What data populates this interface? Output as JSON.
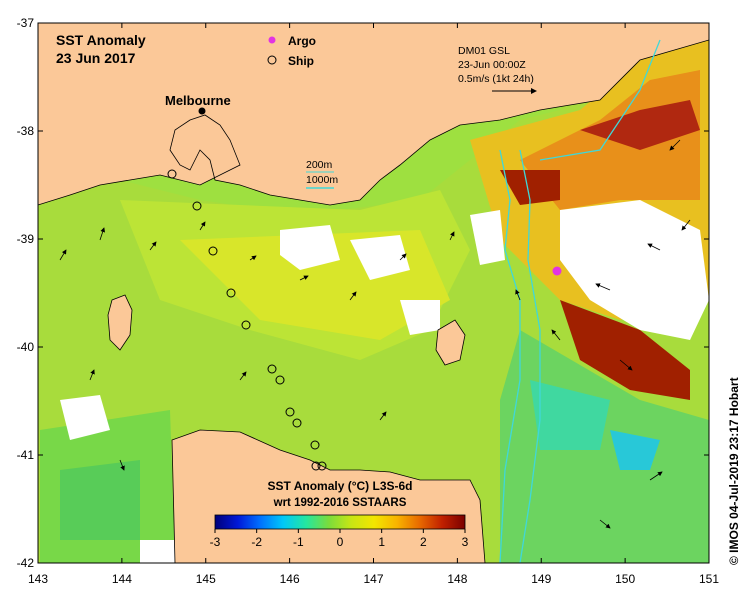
{
  "map": {
    "title": "SST Anomaly",
    "date": "23 Jun 2017",
    "place_label": "Melbourne",
    "legend": [
      {
        "label": "Argo",
        "color": "#e233e2",
        "marker": "star"
      },
      {
        "label": "Ship",
        "color": "#000000",
        "marker": "circle"
      }
    ],
    "current_info": {
      "line1": "DM01 GSL",
      "line2": "23-Jun 00:00Z",
      "line3": "0.5m/s (1kt 24h)"
    },
    "isobaths": {
      "shallow": "200m",
      "deep": "1000m",
      "color": "#40d8d8"
    },
    "colorbar": {
      "title_line1": "SST Anomaly (°C) L3S-6d",
      "title_line2": "wrt 1992-2016 SSTAARS",
      "ticks": [
        "-3",
        "-2",
        "-1",
        "0",
        "1",
        "2",
        "3"
      ],
      "colors": [
        "#00007a",
        "#0018d8",
        "#0072ff",
        "#00c8f8",
        "#24e6a0",
        "#7adc3c",
        "#c8e614",
        "#f2e600",
        "#f8b400",
        "#e86a00",
        "#c02000",
        "#7a0000"
      ]
    },
    "credit": "© IMOS 04-Jul-2019 23:17 Hobart",
    "x_ticks": [
      "143",
      "144",
      "145",
      "146",
      "147",
      "148",
      "149",
      "150",
      "151"
    ],
    "y_ticks": [
      "-37",
      "-38",
      "-39",
      "-40",
      "-41",
      "-42"
    ],
    "land_color": "#fbc898"
  }
}
